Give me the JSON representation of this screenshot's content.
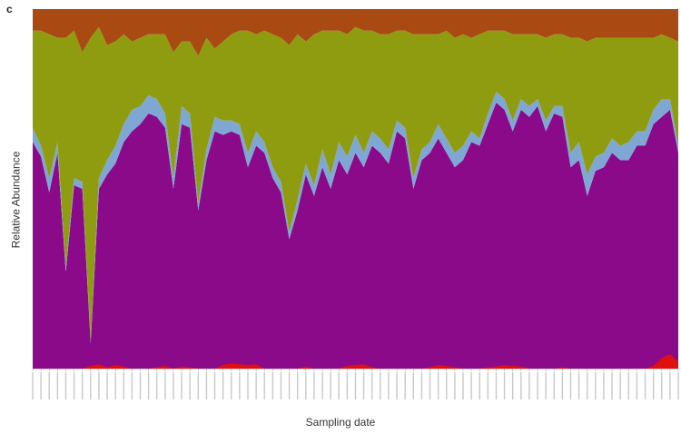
{
  "figure": {
    "panel_letter": "c"
  },
  "chart_data": {
    "type": "area",
    "stacked": true,
    "normalized": true,
    "xlabel": "Sampling date",
    "ylabel": "Relative Abundance",
    "ylim": [
      0,
      1
    ],
    "legend": "none",
    "grid": false,
    "series": [
      {
        "color": "#8a0a8a",
        "values": [
          0.63,
          0.59,
          0.49,
          0.6,
          0.27,
          0.51,
          0.5,
          0.07,
          0.5,
          0.54,
          0.57,
          0.63,
          0.66,
          0.68,
          0.71,
          0.7,
          0.67,
          0.5,
          0.68,
          0.67,
          0.44,
          0.58,
          0.66,
          0.65,
          0.66,
          0.65,
          0.56,
          0.62,
          0.6,
          0.53,
          0.49,
          0.36,
          0.44,
          0.54,
          0.48,
          0.56,
          0.5,
          0.58,
          0.54,
          0.6,
          0.56,
          0.62,
          0.6,
          0.57,
          0.66,
          0.64,
          0.5,
          0.58,
          0.6,
          0.64,
          0.6,
          0.56,
          0.58,
          0.63,
          0.62,
          0.68,
          0.74,
          0.72,
          0.66,
          0.72,
          0.7,
          0.73,
          0.66,
          0.71,
          0.7,
          0.56,
          0.58,
          0.48,
          0.55,
          0.56,
          0.6,
          0.58,
          0.58,
          0.62,
          0.62,
          0.68,
          0.7,
          0.72,
          0.6
        ],
        "labels": []
      },
      {
        "color": "#7fa7d4",
        "values": [
          0.04,
          0.03,
          0.04,
          0.03,
          0.01,
          0.02,
          0.02,
          0.01,
          0.03,
          0.04,
          0.05,
          0.05,
          0.06,
          0.05,
          0.05,
          0.05,
          0.04,
          0.03,
          0.05,
          0.04,
          0.02,
          0.03,
          0.04,
          0.04,
          0.03,
          0.03,
          0.04,
          0.04,
          0.03,
          0.03,
          0.03,
          0.02,
          0.03,
          0.03,
          0.03,
          0.05,
          0.04,
          0.05,
          0.05,
          0.05,
          0.04,
          0.04,
          0.04,
          0.04,
          0.03,
          0.03,
          0.03,
          0.03,
          0.03,
          0.04,
          0.04,
          0.04,
          0.04,
          0.03,
          0.02,
          0.03,
          0.03,
          0.03,
          0.03,
          0.03,
          0.03,
          0.02,
          0.03,
          0.02,
          0.03,
          0.04,
          0.05,
          0.06,
          0.04,
          0.04,
          0.04,
          0.04,
          0.05,
          0.04,
          0.04,
          0.04,
          0.05,
          0.03,
          0.02
        ]
      },
      {
        "color": "#8f9c10",
        "values": [
          0.27,
          0.32,
          0.4,
          0.29,
          0.64,
          0.41,
          0.36,
          0.84,
          0.42,
          0.32,
          0.29,
          0.25,
          0.19,
          0.19,
          0.17,
          0.18,
          0.22,
          0.35,
          0.18,
          0.2,
          0.41,
          0.31,
          0.19,
          0.22,
          0.24,
          0.26,
          0.34,
          0.27,
          0.31,
          0.37,
          0.4,
          0.52,
          0.46,
          0.34,
          0.42,
          0.33,
          0.4,
          0.31,
          0.34,
          0.3,
          0.34,
          0.28,
          0.29,
          0.32,
          0.25,
          0.27,
          0.4,
          0.32,
          0.3,
          0.25,
          0.3,
          0.32,
          0.31,
          0.26,
          0.29,
          0.23,
          0.17,
          0.19,
          0.24,
          0.18,
          0.2,
          0.18,
          0.23,
          0.2,
          0.2,
          0.32,
          0.29,
          0.37,
          0.33,
          0.32,
          0.28,
          0.3,
          0.29,
          0.26,
          0.26,
          0.2,
          0.18,
          0.17,
          0.29
        ]
      },
      {
        "color": "#a84a12",
        "values": [
          0.06,
          0.06,
          0.07,
          0.08,
          0.08,
          0.06,
          0.12,
          0.08,
          0.05,
          0.1,
          0.09,
          0.07,
          0.09,
          0.08,
          0.07,
          0.07,
          0.07,
          0.12,
          0.09,
          0.09,
          0.13,
          0.08,
          0.11,
          0.09,
          0.07,
          0.06,
          0.06,
          0.07,
          0.06,
          0.07,
          0.08,
          0.1,
          0.07,
          0.09,
          0.07,
          0.06,
          0.06,
          0.06,
          0.07,
          0.05,
          0.06,
          0.06,
          0.07,
          0.07,
          0.06,
          0.06,
          0.07,
          0.07,
          0.07,
          0.07,
          0.06,
          0.08,
          0.07,
          0.08,
          0.07,
          0.06,
          0.06,
          0.06,
          0.07,
          0.07,
          0.07,
          0.07,
          0.08,
          0.07,
          0.07,
          0.08,
          0.08,
          0.09,
          0.08,
          0.08,
          0.08,
          0.08,
          0.08,
          0.08,
          0.08,
          0.08,
          0.07,
          0.08,
          0.09
        ]
      }
    ],
    "red_baseline": {
      "color": "#e01010",
      "values": [
        0.0,
        0.0,
        0.0,
        0.0,
        0.0,
        0.0,
        0.0,
        0.008,
        0.012,
        0.004,
        0.01,
        0.006,
        0.0,
        0.0,
        0.0,
        0.004,
        0.008,
        0.0,
        0.006,
        0.004,
        0.0,
        0.0,
        0.0,
        0.01,
        0.014,
        0.012,
        0.01,
        0.012,
        0.0,
        0.0,
        0.0,
        0.0,
        0.0,
        0.006,
        0.0,
        0.0,
        0.0,
        0.0,
        0.008,
        0.01,
        0.012,
        0.004,
        0.0,
        0.0,
        0.0,
        0.0,
        0.0,
        0.0,
        0.004,
        0.01,
        0.008,
        0.004,
        0.0,
        0.0,
        0.0,
        0.004,
        0.006,
        0.01,
        0.008,
        0.006,
        0.0,
        0.0,
        0.0,
        0.0,
        0.004,
        0.0,
        0.0,
        0.0,
        0.0,
        0.0,
        0.0,
        0.0,
        0.0,
        0.0,
        0.0,
        0.008,
        0.03,
        0.04,
        0.02
      ]
    }
  }
}
